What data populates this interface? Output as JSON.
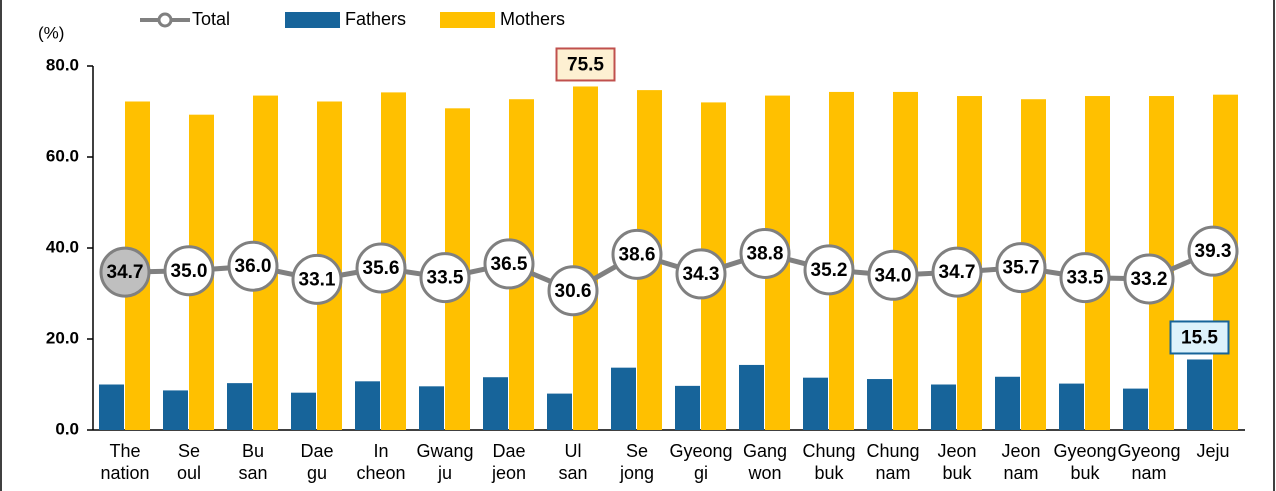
{
  "chart_data": {
    "type": "bar_line",
    "unit_label": "(%)",
    "categories": [
      "The nation",
      "Se oul",
      "Bu san",
      "Dae gu",
      "In cheon",
      "Gwang ju",
      "Dae jeon",
      "Ul san",
      "Se jong",
      "Gyeong gi",
      "Gang won",
      "Chung buk",
      "Chung nam",
      "Jeon buk",
      "Jeon nam",
      "Gyeong buk",
      "Gyeong nam",
      "Jeju"
    ],
    "series": [
      {
        "name": "Total",
        "kind": "line",
        "color": "#808080",
        "marker_colors": [
          "#bfbfbf",
          "#ffffff",
          "#ffffff",
          "#ffffff",
          "#ffffff",
          "#ffffff",
          "#ffffff",
          "#ffffff",
          "#ffffff",
          "#ffffff",
          "#ffffff",
          "#ffffff",
          "#ffffff",
          "#ffffff",
          "#ffffff",
          "#ffffff",
          "#ffffff",
          "#ffffff"
        ],
        "values": [
          34.7,
          35.0,
          36.0,
          33.1,
          35.6,
          33.5,
          36.5,
          30.6,
          38.6,
          34.3,
          38.8,
          35.2,
          34.0,
          34.7,
          35.7,
          33.5,
          33.2,
          39.3
        ],
        "value_labels": [
          "34.7",
          "35.0",
          "36.0",
          "33.1",
          "35.6",
          "33.5",
          "36.5",
          "30.6",
          "38.6",
          "34.3",
          "38.8",
          "35.2",
          "34.0",
          "34.7",
          "35.7",
          "33.5",
          "33.2",
          "39.3"
        ]
      },
      {
        "name": "Fathers",
        "kind": "bar",
        "color": "#17649a",
        "values": [
          10.0,
          8.7,
          10.3,
          8.2,
          10.7,
          9.6,
          11.6,
          8.0,
          13.7,
          9.7,
          14.3,
          11.5,
          11.2,
          10.0,
          11.7,
          10.2,
          9.1,
          15.5
        ]
      },
      {
        "name": "Mothers",
        "kind": "bar",
        "color": "#ffc000",
        "values": [
          72.2,
          69.3,
          73.5,
          72.2,
          74.2,
          70.7,
          72.7,
          75.5,
          74.7,
          72.0,
          73.5,
          74.3,
          74.3,
          73.4,
          72.7,
          73.4,
          73.4,
          73.7
        ]
      }
    ],
    "highlights": [
      {
        "series": "Mothers",
        "category": "Ul san",
        "label": "75.5",
        "fill": "#fdf0d2",
        "border": "#c0504d"
      },
      {
        "series": "Fathers",
        "category": "Jeju",
        "label": "15.5",
        "fill": "#ddf2fb",
        "border": "#17649a"
      }
    ],
    "ylim": [
      0,
      80
    ],
    "yticks": [
      {
        "value": 0,
        "label": "0.0"
      },
      {
        "value": 20,
        "label": "20.0"
      },
      {
        "value": 40,
        "label": "40.0"
      },
      {
        "value": 60,
        "label": "60.0"
      },
      {
        "value": 80,
        "label": "80.0"
      }
    ],
    "grid": false
  }
}
